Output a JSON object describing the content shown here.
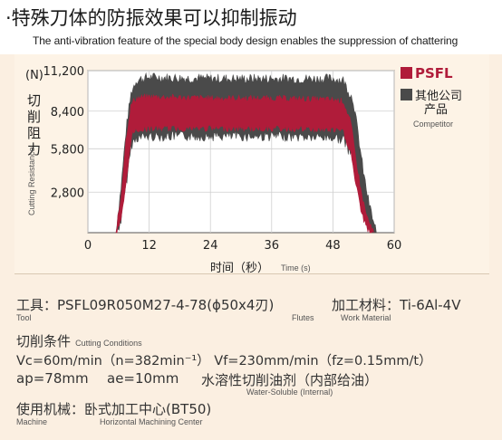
{
  "header": {
    "title": "·特殊刀体的防振效果可以抑制振动",
    "subtitle": "The anti-vibration feature of the special body design enables the suppression of chattering"
  },
  "chart_data": {
    "type": "area",
    "ylabel_unit": "(N)",
    "ylabel_cn": [
      "切",
      "削",
      "阻",
      "力"
    ],
    "ylabel_en": "Cutting Resistance",
    "xlabel_cn": "时间（秒）",
    "xlabel_en": "Time (s)",
    "xlim": [
      0,
      60
    ],
    "ylim": [
      0,
      11200
    ],
    "xticks": [
      0,
      12,
      24,
      36,
      48,
      60
    ],
    "yticks": [
      2800,
      5800,
      8400,
      11200
    ],
    "ytick_labels": [
      "2,800",
      "5,800",
      "8,400",
      "11,200"
    ],
    "legend_position": "right",
    "series": [
      {
        "name": "其他公司",
        "name_cn2": "产品",
        "name_en": "Competitor",
        "color": "#4a4a4a",
        "x": [
          5.5,
          6.5,
          7.5,
          8.5,
          9.5,
          12,
          24,
          36,
          48,
          50,
          52,
          53,
          54,
          55,
          56,
          56.5
        ],
        "upper": [
          0,
          3000,
          7000,
          9600,
          10400,
          10600,
          10500,
          10500,
          10500,
          10400,
          9000,
          6500,
          4000,
          2000,
          500,
          0
        ],
        "lower": [
          0,
          1000,
          3500,
          6200,
          6700,
          6800,
          6800,
          6800,
          6700,
          6600,
          5200,
          3200,
          1500,
          400,
          0,
          0
        ]
      },
      {
        "name": "PSFL",
        "color": "#b01c3a",
        "x": [
          5.5,
          6.5,
          7.5,
          8.5,
          9.5,
          12,
          24,
          36,
          48,
          50,
          51.5,
          52.5,
          53.5,
          54.5,
          55.5,
          56
        ],
        "upper": [
          0,
          2400,
          6500,
          8800,
          9200,
          9300,
          9200,
          9200,
          9100,
          9000,
          7500,
          5000,
          2800,
          1200,
          200,
          0
        ],
        "lower": [
          0,
          900,
          3400,
          6800,
          7200,
          7300,
          7300,
          7300,
          7200,
          7100,
          5600,
          3400,
          1600,
          500,
          0,
          0
        ]
      }
    ]
  },
  "conditions": {
    "tool_label": "工具：",
    "tool_value": "PSFL09R050M27-4-78(ϕ50x4刃)",
    "tool_en": "Tool",
    "flutes_en": "Flutes",
    "material_label": "加工材料：",
    "material_value": "Ti-6Al-4V",
    "material_en": "Work Material",
    "cutting_cn": "切削条件",
    "cutting_en": "Cutting Conditions",
    "line1": "Vc=60m/min（n=382min⁻¹）  Vf=230mm/min（fz=0.15mm/t）",
    "ap": "ap=78mm",
    "ae": "ae=10mm",
    "coolant": "水溶性切削油剂（内部给油）",
    "coolant_en": "Water-Soluble (Internal)",
    "machine_label": "使用机械：",
    "machine_value": "卧式加工中心(BT50)",
    "machine_en": "Machine",
    "machine_type_en": "Horizontal Machining Center"
  }
}
